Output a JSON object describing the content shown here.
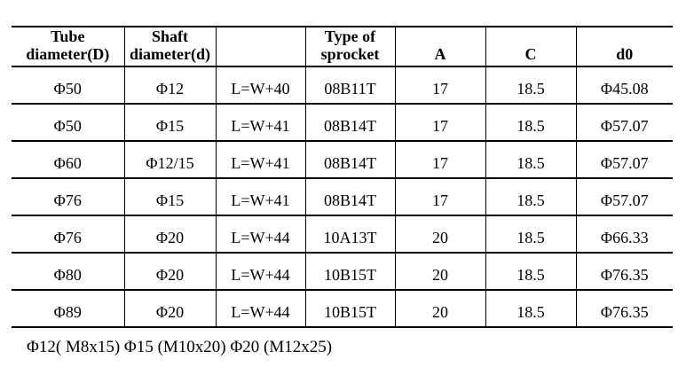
{
  "page": {
    "background_color": "#ffffff",
    "text_color": "#000000",
    "border_color": "#000000"
  },
  "table": {
    "headers": [
      {
        "line1": "Tube",
        "line2": "diameter(D)"
      },
      {
        "line1": "Shaft",
        "line2": "diameter(d)"
      },
      {
        "line1": "",
        "line2": ""
      },
      {
        "line1": "Type of",
        "line2": "sprocket"
      },
      {
        "line1": "",
        "line2": "A"
      },
      {
        "line1": "",
        "line2": "C"
      },
      {
        "line1": "",
        "line2": "d0"
      }
    ],
    "rows": [
      [
        "Φ50",
        "Φ12",
        "L=W+40",
        "08B11T",
        "17",
        "18.5",
        "Φ45.08"
      ],
      [
        "Φ50",
        "Φ15",
        "L=W+41",
        "08B14T",
        "17",
        "18.5",
        "Φ57.07"
      ],
      [
        "Φ60",
        "Φ12/15",
        "L=W+41",
        "08B14T",
        "17",
        "18.5",
        "Φ57.07"
      ],
      [
        "Φ76",
        "Φ15",
        "L=W+41",
        "08B14T",
        "17",
        "18.5",
        "Φ57.07"
      ],
      [
        "Φ76",
        "Φ20",
        "L=W+44",
        "10A13T",
        "20",
        "18.5",
        "Φ66.33"
      ],
      [
        "Φ80",
        "Φ20",
        "L=W+44",
        "10B15T",
        "20",
        "18.5",
        "Φ76.35"
      ],
      [
        "Φ89",
        "Φ20",
        "L=W+44",
        "10B15T",
        "20",
        "18.5",
        "Φ76.35"
      ]
    ]
  },
  "footnote": {
    "text": "Φ12( M8x15) Φ15 (M10x20) Φ20 (M12x25)"
  }
}
